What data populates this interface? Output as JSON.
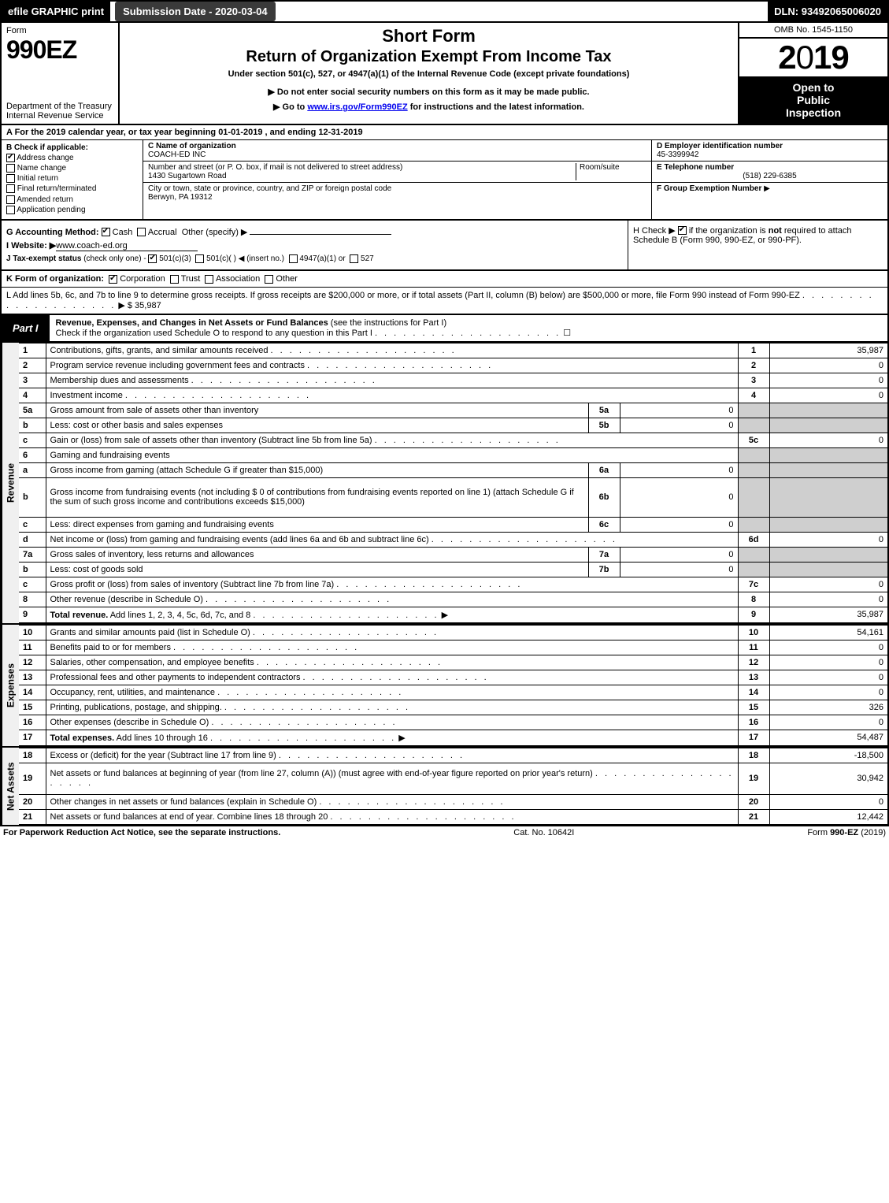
{
  "topbar": {
    "efile_prefix": "efile",
    "efile_words": " GRAPHIC print",
    "submission_date_label": "Submission Date - ",
    "submission_date": "2020-03-04",
    "dln_label": "DLN: ",
    "dln": "93492065006020"
  },
  "header": {
    "form_word": "Form",
    "form_number": "990EZ",
    "dept1": "Department of the Treasury",
    "dept2": "Internal Revenue Service",
    "short_form": "Short Form",
    "return_title": "Return of Organization Exempt From Income Tax",
    "under_section": "Under section 501(c), 527, or 4947(a)(1) of the Internal Revenue Code (except private foundations)",
    "donot": "Do not enter social security numbers on this form as it may be made public.",
    "goto_prefix": "Go to ",
    "goto_link": "www.irs.gov/Form990EZ",
    "goto_suffix": " for instructions and the latest information.",
    "omb": "OMB No. 1545-1150",
    "year": "2019",
    "open1": "Open to",
    "open2": "Public",
    "open3": "Inspection"
  },
  "tax_year": {
    "line": "A For the 2019 calendar year, or tax year beginning 01-01-2019 , and ending 12-31-2019"
  },
  "col_b": {
    "title": "B  Check if applicable:",
    "opts": [
      "Address change",
      "Name change",
      "Initial return",
      "Final return/terminated",
      "Amended return",
      "Application pending"
    ],
    "checked_index": 0
  },
  "col_c": {
    "name_label": "C Name of organization",
    "name": "COACH-ED INC",
    "street_label": "Number and street (or P. O. box, if mail is not delivered to street address)",
    "room_label": "Room/suite",
    "street": "1430 Sugartown Road",
    "city_label": "City or town, state or province, country, and ZIP or foreign postal code",
    "city": "Berwyn, PA  19312"
  },
  "col_d": {
    "ein_label": "D Employer identification number",
    "ein": "45-3399942",
    "tel_label": "E Telephone number",
    "tel": "(518) 229-6385",
    "grp_label": "F Group Exemption Number",
    "grp_arrow": "▶"
  },
  "mid": {
    "g_label": "G Accounting Method:",
    "g_cash": "Cash",
    "g_accrual": "Accrual",
    "g_other": "Other (specify) ▶",
    "i_label": "I Website: ▶",
    "i_val": "www.coach-ed.org",
    "j_label": "J Tax-exempt status",
    "j_sub": "(check only one) - ",
    "j_501c3": "501(c)(3)",
    "j_501c": "501(c)( )",
    "j_insert": "◀ (insert no.)",
    "j_4947": "4947(a)(1) or",
    "j_527": "527",
    "h_text1": "H  Check ▶ ",
    "h_text2": " if the organization is ",
    "h_not": "not",
    "h_text3": " required to attach Schedule B (Form 990, 990-EZ, or 990-PF)."
  },
  "line_k": {
    "label": "K Form of organization:",
    "corp": "Corporation",
    "trust": "Trust",
    "assoc": "Association",
    "other": "Other"
  },
  "line_l": {
    "text": "L Add lines 5b, 6c, and 7b to line 9 to determine gross receipts. If gross receipts are $200,000 or more, or if total assets (Part II, column (B) below) are $500,000 or more, file Form 990 instead of Form 990-EZ",
    "amount": "$ 35,987"
  },
  "part1": {
    "label": "Part I",
    "title": "Revenue, Expenses, and Changes in Net Assets or Fund Balances",
    "sub": "(see the instructions for Part I)",
    "check_line": "Check if the organization used Schedule O to respond to any question in this Part I",
    "check_box_end": "☐"
  },
  "rows": [
    {
      "n": "1",
      "desc": "Contributions, gifts, grants, and similar amounts received",
      "lbl": "1",
      "amt": "35,987"
    },
    {
      "n": "2",
      "desc": "Program service revenue including government fees and contracts",
      "lbl": "2",
      "amt": "0"
    },
    {
      "n": "3",
      "desc": "Membership dues and assessments",
      "lbl": "3",
      "amt": "0"
    },
    {
      "n": "4",
      "desc": "Investment income",
      "lbl": "4",
      "amt": "0"
    },
    {
      "n": "5a",
      "desc": "Gross amount from sale of assets other than inventory",
      "sub_lbl": "5a",
      "sub_val": "0",
      "shade": true
    },
    {
      "n": "b",
      "desc": "Less: cost or other basis and sales expenses",
      "sub_lbl": "5b",
      "sub_val": "0",
      "shade": true
    },
    {
      "n": "c",
      "desc": "Gain or (loss) from sale of assets other than inventory (Subtract line 5b from line 5a)",
      "lbl": "5c",
      "amt": "0"
    },
    {
      "n": "6",
      "desc": "Gaming and fundraising events",
      "shade": true,
      "noamt": true
    },
    {
      "n": "a",
      "desc": "Gross income from gaming (attach Schedule G if greater than $15,000)",
      "sub_lbl": "6a",
      "sub_val": "0",
      "shade": true
    },
    {
      "n": "b",
      "desc": "Gross income from fundraising events (not including $  0             of contributions from fundraising events reported on line 1) (attach Schedule G if the sum of such gross income and contributions exceeds $15,000)",
      "sub_lbl": "6b",
      "sub_val": "0",
      "shade": true,
      "tall": true
    },
    {
      "n": "c",
      "desc": "Less: direct expenses from gaming and fundraising events",
      "sub_lbl": "6c",
      "sub_val": "0",
      "shade": true
    },
    {
      "n": "d",
      "desc": "Net income or (loss) from gaming and fundraising events (add lines 6a and 6b and subtract line 6c)",
      "lbl": "6d",
      "amt": "0"
    },
    {
      "n": "7a",
      "desc": "Gross sales of inventory, less returns and allowances",
      "sub_lbl": "7a",
      "sub_val": "0",
      "shade": true
    },
    {
      "n": "b",
      "desc": "Less: cost of goods sold",
      "sub_lbl": "7b",
      "sub_val": "0",
      "shade": true
    },
    {
      "n": "c",
      "desc": "Gross profit or (loss) from sales of inventory (Subtract line 7b from line 7a)",
      "lbl": "7c",
      "amt": "0"
    },
    {
      "n": "8",
      "desc": "Other revenue (describe in Schedule O)",
      "lbl": "8",
      "amt": "0"
    },
    {
      "n": "9",
      "desc": "Total revenue. Add lines 1, 2, 3, 4, 5c, 6d, 7c, and 8",
      "lbl": "9",
      "amt": "35,987",
      "bold": true,
      "arrow": true
    }
  ],
  "side_labels": {
    "revenue": "Revenue",
    "expenses": "Expenses",
    "netassets": "Net Assets"
  },
  "exp_rows": [
    {
      "n": "10",
      "desc": "Grants and similar amounts paid (list in Schedule O)",
      "lbl": "10",
      "amt": "54,161"
    },
    {
      "n": "11",
      "desc": "Benefits paid to or for members",
      "lbl": "11",
      "amt": "0"
    },
    {
      "n": "12",
      "desc": "Salaries, other compensation, and employee benefits",
      "lbl": "12",
      "amt": "0"
    },
    {
      "n": "13",
      "desc": "Professional fees and other payments to independent contractors",
      "lbl": "13",
      "amt": "0"
    },
    {
      "n": "14",
      "desc": "Occupancy, rent, utilities, and maintenance",
      "lbl": "14",
      "amt": "0"
    },
    {
      "n": "15",
      "desc": "Printing, publications, postage, and shipping.",
      "lbl": "15",
      "amt": "326"
    },
    {
      "n": "16",
      "desc": "Other expenses (describe in Schedule O)",
      "lbl": "16",
      "amt": "0"
    },
    {
      "n": "17",
      "desc": "Total expenses. Add lines 10 through 16",
      "lbl": "17",
      "amt": "54,487",
      "bold": true,
      "arrow": true
    }
  ],
  "na_rows": [
    {
      "n": "18",
      "desc": "Excess or (deficit) for the year (Subtract line 17 from line 9)",
      "lbl": "18",
      "amt": "-18,500"
    },
    {
      "n": "19",
      "desc": "Net assets or fund balances at beginning of year (from line 27, column (A)) (must agree with end-of-year figure reported on prior year's return)",
      "lbl": "19",
      "amt": "30,942",
      "tall": true
    },
    {
      "n": "20",
      "desc": "Other changes in net assets or fund balances (explain in Schedule O)",
      "lbl": "20",
      "amt": "0"
    },
    {
      "n": "21",
      "desc": "Net assets or fund balances at end of year. Combine lines 18 through 20",
      "lbl": "21",
      "amt": "12,442"
    }
  ],
  "footer": {
    "left": "For Paperwork Reduction Act Notice, see the separate instructions.",
    "mid": "Cat. No. 10642I",
    "right_pre": "Form ",
    "right_form": "990-EZ",
    "right_suf": " (2019)"
  }
}
